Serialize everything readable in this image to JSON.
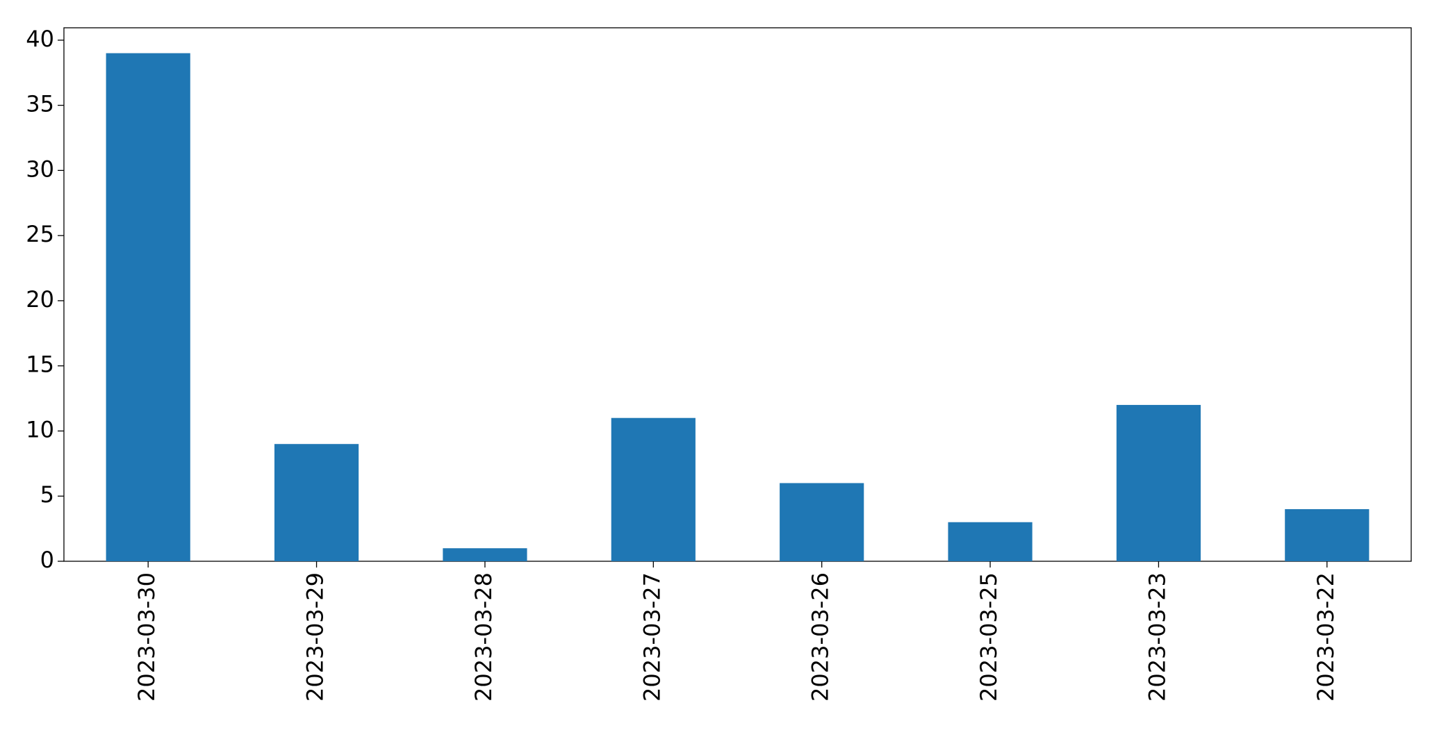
{
  "chart_data": {
    "type": "bar",
    "categories": [
      "2023-03-30",
      "2023-03-29",
      "2023-03-28",
      "2023-03-27",
      "2023-03-26",
      "2023-03-25",
      "2023-03-23",
      "2023-03-22"
    ],
    "values": [
      39,
      9,
      1,
      11,
      6,
      3,
      12,
      4
    ],
    "color": "#1f77b4",
    "ylim": [
      0,
      40.95
    ],
    "yticks": [
      0,
      5,
      10,
      15,
      20,
      25,
      30,
      35,
      40
    ],
    "grid": false
  }
}
